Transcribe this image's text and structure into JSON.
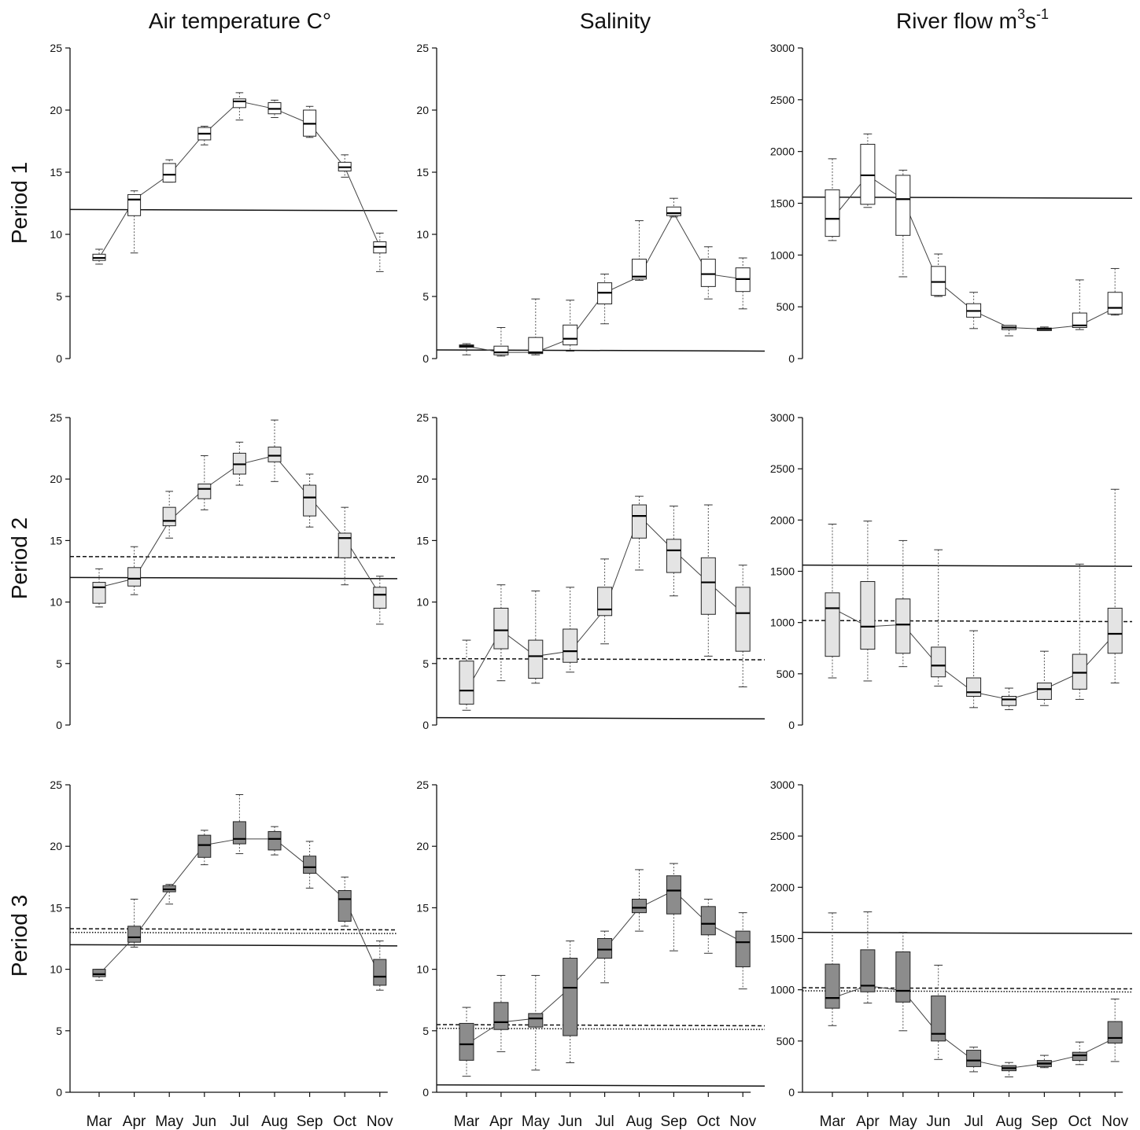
{
  "column_titles": [
    "Air temperature C°",
    "Salinity",
    "River flow m3s-1"
  ],
  "river_title": {
    "base": "River flow m",
    "sup1": "3",
    "mid": "s",
    "sup2": "-1"
  },
  "row_titles": [
    "Period 1",
    "Period 2",
    "Period 3"
  ],
  "months": [
    "Mar",
    "Apr",
    "May",
    "Jun",
    "Jul",
    "Aug",
    "Sep",
    "Oct",
    "Nov"
  ],
  "colors": {
    "period1_box": "#ffffff",
    "period2_box": "#e4e4e4",
    "period3_box": "#8c8c8c",
    "stroke": "#222222"
  },
  "chart_data": [
    {
      "type": "box",
      "column": 0,
      "row": 0,
      "title": "Air temperature C°",
      "ylim": [
        0,
        25
      ],
      "yticks": [
        0,
        5,
        10,
        15,
        20,
        25
      ],
      "categories": [
        "Mar",
        "Apr",
        "May",
        "Jun",
        "Jul",
        "Aug",
        "Sep",
        "Oct",
        "Nov"
      ],
      "boxes": [
        [
          7.6,
          7.9,
          8.1,
          8.4,
          8.8
        ],
        [
          8.5,
          11.5,
          12.8,
          13.2,
          13.5
        ],
        [
          14.2,
          14.2,
          14.8,
          15.7,
          16.0
        ],
        [
          17.2,
          17.6,
          18.1,
          18.6,
          18.7
        ],
        [
          19.2,
          20.2,
          20.7,
          20.9,
          21.4
        ],
        [
          19.4,
          19.7,
          20.1,
          20.6,
          20.8
        ],
        [
          17.8,
          17.9,
          18.9,
          20.0,
          20.3
        ],
        [
          14.6,
          15.1,
          15.4,
          15.8,
          16.4
        ],
        [
          7.0,
          8.5,
          9.0,
          9.4,
          10.1
        ]
      ],
      "reference_lines": [
        {
          "style": "solid",
          "value": 12.0
        }
      ]
    },
    {
      "type": "box",
      "column": 1,
      "row": 0,
      "title": "Salinity",
      "ylim": [
        0,
        25
      ],
      "yticks": [
        0,
        5,
        10,
        15,
        20,
        25
      ],
      "categories": [
        "Mar",
        "Apr",
        "May",
        "Jun",
        "Jul",
        "Aug",
        "Sep",
        "Oct",
        "Nov"
      ],
      "boxes": [
        [
          0.3,
          0.9,
          1.0,
          1.1,
          1.2
        ],
        [
          0.2,
          0.3,
          0.5,
          1.0,
          2.5
        ],
        [
          0.3,
          0.4,
          0.5,
          1.7,
          4.8
        ],
        [
          0.6,
          1.1,
          1.6,
          2.7,
          4.7
        ],
        [
          2.8,
          4.4,
          5.3,
          6.1,
          6.8
        ],
        [
          6.3,
          6.4,
          6.6,
          8.0,
          11.1
        ],
        [
          11.4,
          11.5,
          11.7,
          12.2,
          12.9
        ],
        [
          4.8,
          5.8,
          6.8,
          8.0,
          9.0
        ],
        [
          4.0,
          5.4,
          6.4,
          7.3,
          8.1
        ]
      ],
      "reference_lines": [
        {
          "style": "solid",
          "value": 0.7
        }
      ]
    },
    {
      "type": "box",
      "column": 2,
      "row": 0,
      "title": "River flow m3s-1",
      "ylim": [
        0,
        3000
      ],
      "yticks": [
        0,
        500,
        1000,
        1500,
        2000,
        2500,
        3000
      ],
      "categories": [
        "Mar",
        "Apr",
        "May",
        "Jun",
        "Jul",
        "Aug",
        "Sep",
        "Oct",
        "Nov"
      ],
      "boxes": [
        [
          1140,
          1180,
          1350,
          1630,
          1930
        ],
        [
          1460,
          1490,
          1770,
          2070,
          2170
        ],
        [
          790,
          1190,
          1540,
          1770,
          1820
        ],
        [
          600,
          610,
          740,
          890,
          1010
        ],
        [
          290,
          400,
          460,
          530,
          640
        ],
        [
          220,
          280,
          300,
          320,
          320
        ],
        [
          270,
          270,
          285,
          295,
          305
        ],
        [
          280,
          300,
          320,
          440,
          760
        ],
        [
          420,
          430,
          490,
          640,
          870
        ]
      ],
      "reference_lines": [
        {
          "style": "solid",
          "value": 1560
        }
      ]
    },
    {
      "type": "box",
      "column": 0,
      "row": 1,
      "title": "Air temperature C°",
      "ylim": [
        0,
        25
      ],
      "yticks": [
        0,
        5,
        10,
        15,
        20,
        25
      ],
      "categories": [
        "Mar",
        "Apr",
        "May",
        "Jun",
        "Jul",
        "Aug",
        "Sep",
        "Oct",
        "Nov"
      ],
      "boxes": [
        [
          9.6,
          9.9,
          11.2,
          11.6,
          12.7
        ],
        [
          10.6,
          11.3,
          11.9,
          12.8,
          14.5
        ],
        [
          15.2,
          16.2,
          16.6,
          17.7,
          19.0
        ],
        [
          17.5,
          18.4,
          19.2,
          19.6,
          21.9
        ],
        [
          19.5,
          20.4,
          21.2,
          22.1,
          23.0
        ],
        [
          19.8,
          21.4,
          21.9,
          22.6,
          24.8
        ],
        [
          16.1,
          17.0,
          18.5,
          19.5,
          20.4
        ],
        [
          11.4,
          13.6,
          15.2,
          15.6,
          17.7
        ],
        [
          8.2,
          9.5,
          10.6,
          11.2,
          12.1
        ]
      ],
      "reference_lines": [
        {
          "style": "solid",
          "value": 12.0
        },
        {
          "style": "dashed",
          "value": 13.7
        }
      ]
    },
    {
      "type": "box",
      "column": 1,
      "row": 1,
      "title": "Salinity",
      "ylim": [
        0,
        25
      ],
      "yticks": [
        0,
        5,
        10,
        15,
        20,
        25
      ],
      "categories": [
        "Mar",
        "Apr",
        "May",
        "Jun",
        "Jul",
        "Aug",
        "Sep",
        "Oct",
        "Nov"
      ],
      "boxes": [
        [
          1.2,
          1.7,
          2.8,
          5.2,
          6.9
        ],
        [
          3.6,
          6.2,
          7.7,
          9.5,
          11.4
        ],
        [
          3.4,
          3.8,
          5.6,
          6.9,
          10.9
        ],
        [
          4.3,
          5.1,
          6.0,
          7.8,
          11.2
        ],
        [
          6.6,
          8.9,
          9.4,
          11.2,
          13.5
        ],
        [
          12.6,
          15.2,
          17.0,
          17.9,
          18.6
        ],
        [
          10.5,
          12.4,
          14.2,
          15.1,
          17.8
        ],
        [
          5.6,
          9.0,
          11.6,
          13.6,
          17.9
        ],
        [
          3.1,
          6.0,
          9.1,
          11.2,
          13.0
        ]
      ],
      "reference_lines": [
        {
          "style": "solid",
          "value": 0.6
        },
        {
          "style": "dashed",
          "value": 5.4
        }
      ]
    },
    {
      "type": "box",
      "column": 2,
      "row": 1,
      "title": "River flow m3s-1",
      "ylim": [
        0,
        3000
      ],
      "yticks": [
        0,
        500,
        1000,
        1500,
        2000,
        2500,
        3000
      ],
      "categories": [
        "Mar",
        "Apr",
        "May",
        "Jun",
        "Jul",
        "Aug",
        "Sep",
        "Oct",
        "Nov"
      ],
      "boxes": [
        [
          460,
          670,
          1140,
          1290,
          1960
        ],
        [
          430,
          740,
          960,
          1400,
          1990
        ],
        [
          570,
          700,
          980,
          1230,
          1800
        ],
        [
          380,
          470,
          580,
          760,
          1710
        ],
        [
          170,
          280,
          320,
          460,
          920
        ],
        [
          150,
          190,
          250,
          280,
          360
        ],
        [
          190,
          250,
          350,
          410,
          720
        ],
        [
          250,
          350,
          510,
          690,
          1570
        ],
        [
          410,
          700,
          890,
          1140,
          2300
        ]
      ],
      "reference_lines": [
        {
          "style": "solid",
          "value": 1560
        },
        {
          "style": "dashed",
          "value": 1020
        }
      ]
    },
    {
      "type": "box",
      "column": 0,
      "row": 2,
      "title": "Air temperature C°",
      "ylim": [
        0,
        25
      ],
      "yticks": [
        0,
        5,
        10,
        15,
        20,
        25
      ],
      "categories": [
        "Mar",
        "Apr",
        "May",
        "Jun",
        "Jul",
        "Aug",
        "Sep",
        "Oct",
        "Nov"
      ],
      "boxes": [
        [
          9.1,
          9.4,
          9.6,
          10.0,
          10.0
        ],
        [
          11.8,
          12.2,
          12.6,
          13.5,
          15.7
        ],
        [
          15.3,
          16.3,
          16.5,
          16.8,
          16.9
        ],
        [
          18.5,
          19.1,
          20.1,
          20.9,
          21.3
        ],
        [
          19.4,
          20.2,
          20.6,
          22.0,
          24.2
        ],
        [
          19.3,
          19.7,
          20.6,
          21.2,
          21.6
        ],
        [
          16.6,
          17.8,
          18.3,
          19.2,
          20.4
        ],
        [
          13.5,
          13.9,
          15.7,
          16.4,
          17.5
        ],
        [
          8.3,
          8.7,
          9.4,
          10.8,
          12.3
        ]
      ],
      "reference_lines": [
        {
          "style": "solid",
          "value": 12.0
        },
        {
          "style": "dashed",
          "value": 13.3
        },
        {
          "style": "dotted",
          "value": 13.0
        }
      ]
    },
    {
      "type": "box",
      "column": 1,
      "row": 2,
      "title": "Salinity",
      "ylim": [
        0,
        25
      ],
      "yticks": [
        0,
        5,
        10,
        15,
        20,
        25
      ],
      "categories": [
        "Mar",
        "Apr",
        "May",
        "Jun",
        "Jul",
        "Aug",
        "Sep",
        "Oct",
        "Nov"
      ],
      "boxes": [
        [
          1.3,
          2.6,
          3.9,
          5.6,
          6.9
        ],
        [
          3.3,
          5.1,
          5.7,
          7.3,
          9.5
        ],
        [
          1.8,
          5.3,
          6.0,
          6.4,
          9.5
        ],
        [
          2.4,
          4.6,
          8.5,
          10.9,
          12.3
        ],
        [
          8.9,
          10.9,
          11.6,
          12.5,
          13.1
        ],
        [
          13.1,
          14.6,
          15.0,
          15.7,
          18.1
        ],
        [
          11.5,
          14.5,
          16.4,
          17.6,
          18.6
        ],
        [
          11.3,
          12.8,
          13.7,
          15.1,
          15.7
        ],
        [
          8.4,
          10.2,
          12.2,
          13.1,
          14.6
        ]
      ],
      "reference_lines": [
        {
          "style": "solid",
          "value": 0.6
        },
        {
          "style": "dashed",
          "value": 5.5
        },
        {
          "style": "dotted",
          "value": 5.2
        }
      ]
    },
    {
      "type": "box",
      "column": 2,
      "row": 2,
      "title": "River flow m3s-1",
      "ylim": [
        0,
        3000
      ],
      "yticks": [
        0,
        500,
        1000,
        1500,
        2000,
        2500,
        3000
      ],
      "categories": [
        "Mar",
        "Apr",
        "May",
        "Jun",
        "Jul",
        "Aug",
        "Sep",
        "Oct",
        "Nov"
      ],
      "boxes": [
        [
          650,
          820,
          920,
          1250,
          1750
        ],
        [
          870,
          980,
          1040,
          1390,
          1760
        ],
        [
          600,
          880,
          990,
          1370,
          1560
        ],
        [
          320,
          500,
          570,
          940,
          1240
        ],
        [
          200,
          250,
          310,
          410,
          440
        ],
        [
          150,
          210,
          235,
          260,
          290
        ],
        [
          240,
          250,
          280,
          310,
          360
        ],
        [
          270,
          310,
          360,
          390,
          490
        ],
        [
          300,
          480,
          530,
          690,
          910
        ]
      ],
      "reference_lines": [
        {
          "style": "solid",
          "value": 1560
        },
        {
          "style": "dashed",
          "value": 1020
        },
        {
          "style": "dotted",
          "value": 990
        }
      ]
    }
  ]
}
